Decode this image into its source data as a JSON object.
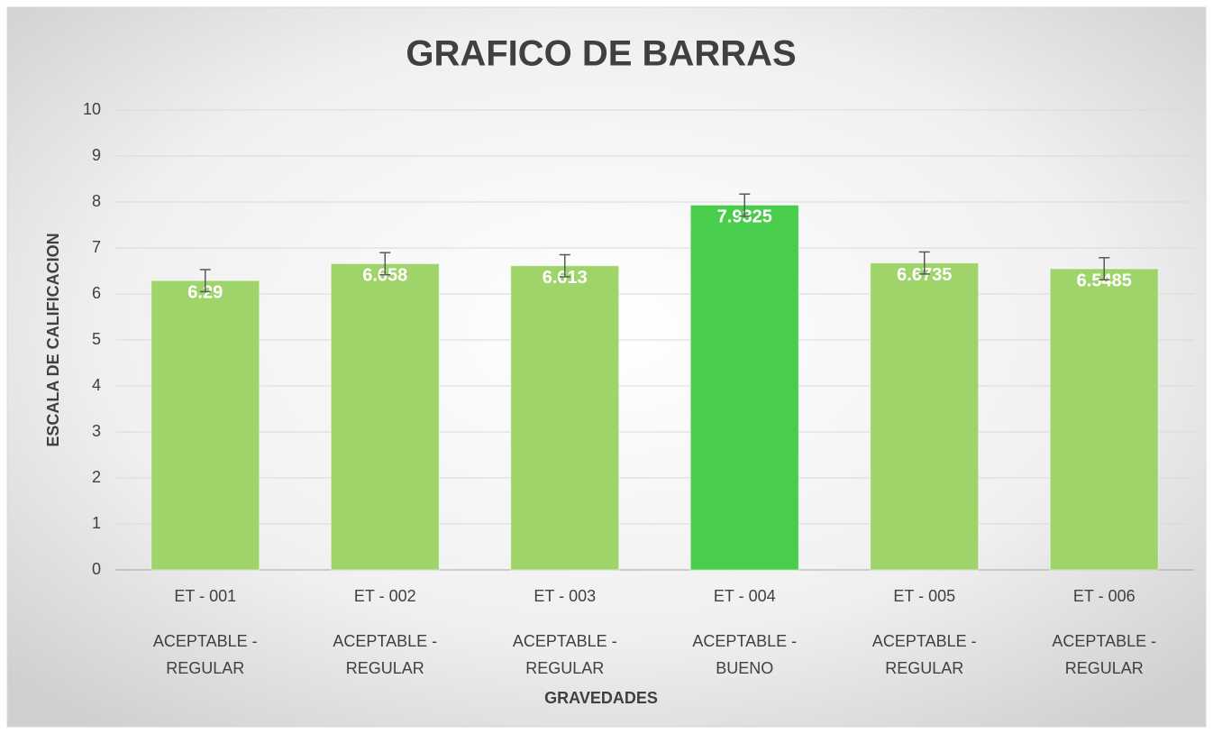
{
  "chart_data": {
    "type": "bar",
    "title": "GRAFICO DE BARRAS",
    "x_label": "GRAVEDADES",
    "y_label": "ESCALA DE CALIFICACION",
    "categories": [
      "ET - 001",
      "ET - 002",
      "ET - 003",
      "ET - 004",
      "ET - 005",
      "ET - 006"
    ],
    "groups": [
      [
        "ACEPTABLE -",
        "REGULAR"
      ],
      [
        "ACEPTABLE -",
        "REGULAR"
      ],
      [
        "ACEPTABLE -",
        "REGULAR"
      ],
      [
        "ACEPTABLE -",
        "BUENO"
      ],
      [
        "ACEPTABLE -",
        "REGULAR"
      ],
      [
        "ACEPTABLE -",
        "REGULAR"
      ]
    ],
    "values": [
      6.29,
      6.658,
      6.613,
      7.9325,
      6.6735,
      6.5485
    ],
    "errors": [
      0.24,
      0.24,
      0.24,
      0.24,
      0.24,
      0.24
    ],
    "colors": [
      "#9fd46a",
      "#9fd46a",
      "#9fd46a",
      "#48cd4c",
      "#9fd46a",
      "#9fd46a"
    ],
    "ylim": [
      0,
      10
    ],
    "yticks": [
      0,
      1,
      2,
      3,
      4,
      5,
      6,
      7,
      8,
      9,
      10
    ],
    "grid": true
  }
}
